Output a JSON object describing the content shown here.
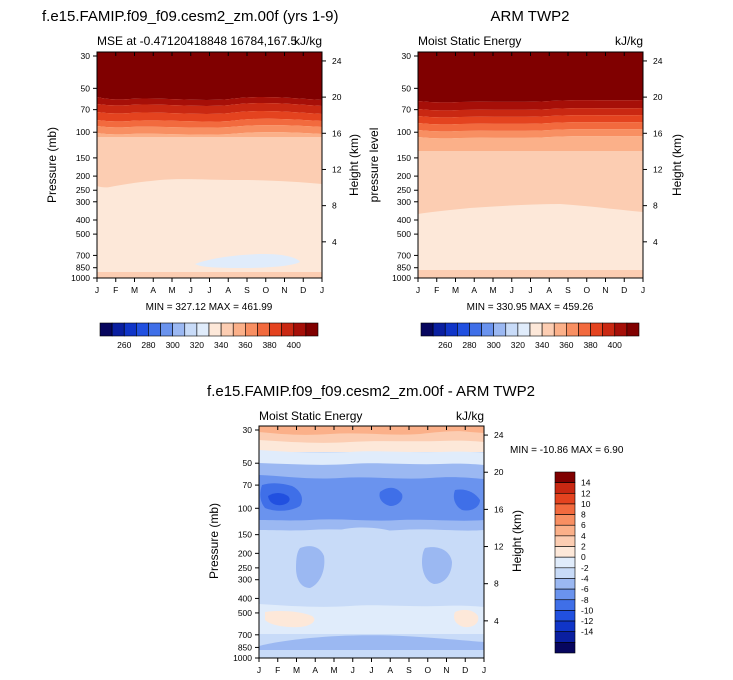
{
  "colors": {
    "fill_scale": [
      "#07065e",
      "#0a1fa0",
      "#1035c8",
      "#2150e0",
      "#3f6fe8",
      "#6a93ee",
      "#9bb8f2",
      "#c8dbf8",
      "#e0ecfb",
      "#fde8d9",
      "#fccdb2",
      "#fbb089",
      "#f88f62",
      "#f26a3e",
      "#e4431f",
      "#c92812",
      "#a60f08",
      "#800000"
    ],
    "diff_scale": [
      "#07065e",
      "#0a1fa0",
      "#1035c8",
      "#2150e0",
      "#3f6fe8",
      "#6a93ee",
      "#9bb8f2",
      "#c8dbf8",
      "#e0ecfb",
      "#fde8d9",
      "#fccdb2",
      "#fbb089",
      "#f88f62",
      "#f26a3e",
      "#e4431f",
      "#c92812",
      "#800000"
    ]
  },
  "axes": {
    "months": [
      "J",
      "F",
      "M",
      "A",
      "M",
      "J",
      "J",
      "A",
      "S",
      "O",
      "N",
      "D",
      "J"
    ],
    "pressure_ticks": [
      "30",
      "50",
      "70",
      "100",
      "150",
      "200",
      "250",
      "300",
      "400",
      "500",
      "700",
      "850",
      "1000"
    ],
    "pressure_values": [
      30,
      50,
      70,
      100,
      150,
      200,
      250,
      300,
      400,
      500,
      700,
      850,
      1000
    ],
    "height_ticks": [
      "24",
      "20",
      "16",
      "12",
      "8",
      "4"
    ],
    "height_values": [
      24,
      20,
      16,
      12,
      8,
      4
    ]
  },
  "panels": [
    {
      "id": "model",
      "title": "f.e15.FAMIP.f09_f09.cesm2_zm.00f (yrs 1-9)",
      "left_label": "MSE at -0.47120418848 16784,167.5",
      "right_label": "kJ/kg",
      "ylabel": "Pressure (mb)",
      "y2label": "Height (km)",
      "stats": "MIN = 327.12 MAX = 461.99"
    },
    {
      "id": "obs",
      "title": "ARM TWP2",
      "left_label": "Moist Static Energy",
      "right_label": "kJ/kg",
      "ylabel": "pressure level",
      "y2label": "Height (km)",
      "stats": "MIN = 330.95 MAX = 459.26"
    },
    {
      "id": "diff",
      "title": "f.e15.FAMIP.f09_f09.cesm2_zm.00f - ARM TWP2",
      "left_label": "Moist Static Energy",
      "right_label": "kJ/kg",
      "ylabel": "Pressure (mb)",
      "y2label": "Height (km)",
      "stats": "MIN = -10.86 MAX =  6.90"
    }
  ],
  "colorbar_full": {
    "labels": [
      "260",
      "280",
      "300",
      "320",
      "340",
      "360",
      "380",
      "400"
    ]
  },
  "colorbar_diff": {
    "labels": [
      "14",
      "12",
      "10",
      "8",
      "6",
      "4",
      "2",
      "0",
      "-2",
      "-4",
      "-6",
      "-8",
      "-10",
      "-12",
      "-14"
    ]
  },
  "chart_data": [
    {
      "type": "heatmap",
      "title": "f.e15.FAMIP.f09_f09.cesm2_zm.00f (yrs 1-9)",
      "xlabel": "",
      "ylabel": "Pressure (mb)",
      "y2label": "Height (km)",
      "x": [
        "J",
        "F",
        "M",
        "A",
        "M",
        "J",
        "J",
        "A",
        "S",
        "O",
        "N",
        "D",
        "J"
      ],
      "y": [
        30,
        50,
        70,
        100,
        150,
        200,
        250,
        300,
        400,
        500,
        700,
        850,
        1000
      ],
      "log_y": true,
      "color_levels": [
        260,
        270,
        280,
        290,
        300,
        310,
        320,
        330,
        340,
        350,
        360,
        370,
        380,
        390,
        400
      ],
      "min": 327.12,
      "max": 461.99,
      "values_kJkg": [
        [
          410,
          410,
          410,
          410,
          410,
          410,
          410,
          410,
          410,
          410,
          410,
          410,
          410
        ],
        [
          395,
          398,
          400,
          402,
          402,
          400,
          398,
          398,
          400,
          402,
          400,
          397,
          395
        ],
        [
          375,
          378,
          382,
          385,
          385,
          382,
          378,
          378,
          382,
          385,
          382,
          378,
          375
        ],
        [
          355,
          358,
          360,
          362,
          362,
          360,
          358,
          358,
          360,
          362,
          360,
          357,
          355
        ],
        [
          345,
          345,
          346,
          346,
          346,
          346,
          346,
          346,
          346,
          346,
          346,
          345,
          345
        ],
        [
          345,
          345,
          346,
          346,
          346,
          346,
          346,
          346,
          346,
          346,
          346,
          345,
          345
        ],
        [
          338,
          340,
          340,
          341,
          341,
          341,
          341,
          341,
          341,
          341,
          341,
          340,
          338
        ],
        [
          336,
          336,
          336,
          336,
          336,
          336,
          336,
          336,
          336,
          336,
          336,
          336,
          336
        ],
        [
          335,
          335,
          335,
          335,
          335,
          335,
          335,
          335,
          335,
          335,
          335,
          335,
          335
        ],
        [
          335,
          335,
          335,
          335,
          335,
          335,
          335,
          335,
          335,
          335,
          335,
          335,
          335
        ],
        [
          335,
          335,
          335,
          335,
          328,
          328,
          328,
          328,
          328,
          328,
          335,
          335,
          335
        ],
        [
          335,
          335,
          335,
          335,
          335,
          335,
          335,
          335,
          335,
          335,
          335,
          335,
          335
        ],
        [
          345,
          345,
          345,
          345,
          345,
          345,
          345,
          345,
          345,
          345,
          345,
          345,
          345
        ]
      ]
    },
    {
      "type": "heatmap",
      "title": "ARM TWP2",
      "ylabel": "pressure level",
      "y2label": "Height (km)",
      "x": [
        "J",
        "F",
        "M",
        "A",
        "M",
        "J",
        "J",
        "A",
        "S",
        "O",
        "N",
        "D",
        "J"
      ],
      "y": [
        30,
        50,
        70,
        100,
        150,
        200,
        250,
        300,
        400,
        500,
        700,
        850,
        1000
      ],
      "log_y": true,
      "color_levels": [
        260,
        270,
        280,
        290,
        300,
        310,
        320,
        330,
        340,
        350,
        360,
        370,
        380,
        390,
        400
      ],
      "min": 330.95,
      "max": 459.26,
      "values_kJkg": [
        [
          410,
          410,
          410,
          410,
          410,
          410,
          410,
          410,
          410,
          410,
          410,
          410,
          410
        ],
        [
          395,
          396,
          398,
          400,
          400,
          398,
          396,
          396,
          398,
          400,
          398,
          396,
          395
        ],
        [
          375,
          376,
          380,
          383,
          383,
          380,
          376,
          376,
          380,
          383,
          380,
          376,
          375
        ],
        [
          355,
          356,
          358,
          360,
          360,
          358,
          356,
          356,
          358,
          360,
          358,
          356,
          355
        ],
        [
          345,
          345,
          345,
          345,
          345,
          345,
          345,
          345,
          345,
          345,
          345,
          345,
          345
        ],
        [
          345,
          345,
          345,
          345,
          345,
          345,
          345,
          345,
          345,
          345,
          345,
          345,
          345
        ],
        [
          341,
          341,
          341,
          341,
          341,
          341,
          341,
          341,
          341,
          341,
          341,
          341,
          341
        ],
        [
          338,
          338,
          338,
          338,
          338,
          338,
          338,
          338,
          338,
          338,
          338,
          338,
          338
        ],
        [
          335,
          335,
          335,
          335,
          335,
          335,
          335,
          335,
          335,
          335,
          335,
          335,
          335
        ],
        [
          335,
          335,
          335,
          335,
          335,
          335,
          335,
          335,
          335,
          335,
          335,
          335,
          335
        ],
        [
          335,
          335,
          335,
          335,
          335,
          335,
          335,
          335,
          335,
          335,
          335,
          335,
          335
        ],
        [
          335,
          335,
          335,
          335,
          335,
          335,
          335,
          335,
          335,
          335,
          335,
          335,
          335
        ],
        [
          345,
          345,
          345,
          345,
          345,
          345,
          345,
          345,
          345,
          345,
          345,
          345,
          345
        ]
      ]
    },
    {
      "type": "heatmap",
      "title": "f.e15.FAMIP.f09_f09.cesm2_zm.00f - ARM TWP2",
      "ylabel": "Pressure (mb)",
      "y2label": "Height (km)",
      "x": [
        "J",
        "F",
        "M",
        "A",
        "M",
        "J",
        "J",
        "A",
        "S",
        "O",
        "N",
        "D",
        "J"
      ],
      "y": [
        30,
        50,
        70,
        100,
        150,
        200,
        250,
        300,
        400,
        500,
        700,
        850,
        1000
      ],
      "log_y": true,
      "color_levels": [
        -14,
        -12,
        -10,
        -8,
        -6,
        -4,
        -2,
        0,
        2,
        4,
        6,
        8,
        10,
        12,
        14
      ],
      "min": -10.86,
      "max": 6.9,
      "values_kJkg": [
        [
          3,
          3,
          3,
          3,
          3,
          3,
          3,
          3,
          3,
          3,
          3,
          4,
          3
        ],
        [
          1,
          1,
          1,
          1,
          1,
          1,
          1,
          1,
          1,
          1,
          1,
          1,
          1
        ],
        [
          -5,
          -7,
          -6,
          -5,
          -4,
          -5,
          -6,
          -7,
          -6,
          -5,
          -5,
          -6,
          -5
        ],
        [
          -5,
          -6,
          -6,
          -5,
          -4,
          -5,
          -5,
          -6,
          -5,
          -5,
          -5,
          -6,
          -5
        ],
        [
          -3,
          -3,
          -3,
          -3,
          -2,
          -1,
          -1,
          -1,
          -2,
          -3,
          -3,
          -3,
          -3
        ],
        [
          -3,
          -3,
          -3,
          -3,
          -2,
          -1,
          -1,
          -1,
          -2,
          -3,
          -3,
          -3,
          -3
        ],
        [
          -3,
          -3,
          -3,
          -3,
          -2,
          -1,
          -1,
          -1,
          -2,
          -3,
          -3,
          -3,
          -3
        ],
        [
          -3,
          -3,
          -3,
          -3,
          -2,
          -1,
          -1,
          -1,
          -2,
          -3,
          -3,
          -3,
          -3
        ],
        [
          -3,
          -3,
          -3,
          -3,
          -3,
          -2,
          -2,
          -2,
          -3,
          -3,
          -3,
          -3,
          -3
        ],
        [
          -1,
          -1,
          -1,
          -1,
          -1,
          -1,
          -1,
          -1,
          -1,
          -1,
          -1,
          -1,
          -1
        ],
        [
          1,
          1,
          -1,
          -1,
          -1,
          -1,
          -1,
          -1,
          -1,
          -1,
          -1,
          1,
          1
        ],
        [
          -3,
          -3,
          -3,
          -3,
          -3,
          -3,
          -3,
          -3,
          -3,
          -3,
          -3,
          -3,
          -3
        ],
        [
          -1,
          -1,
          -1,
          -1,
          -1,
          -1,
          -1,
          -1,
          -1,
          -1,
          -1,
          -1,
          -1
        ]
      ]
    }
  ]
}
